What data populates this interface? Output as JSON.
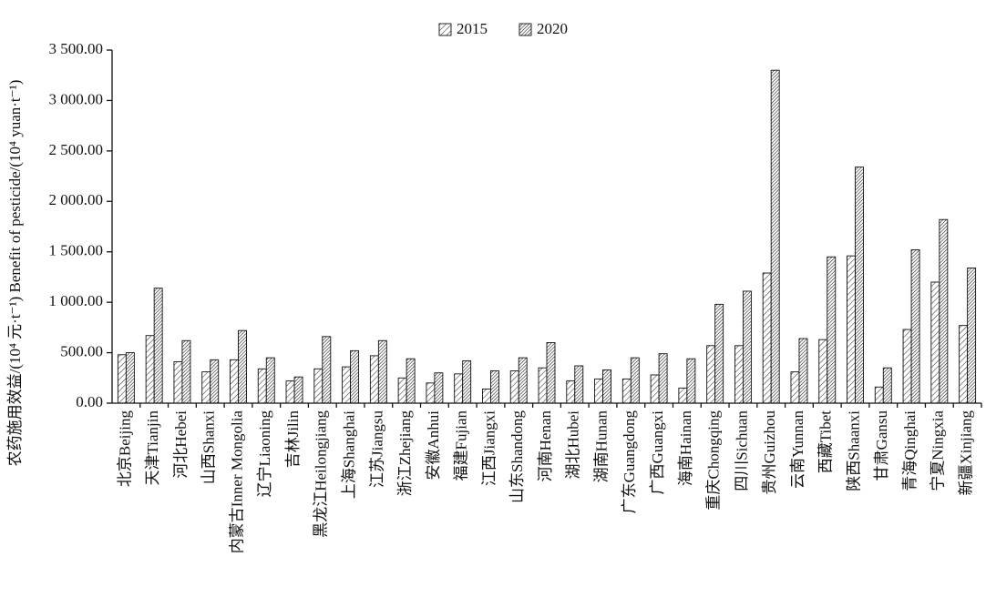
{
  "chart_data": {
    "type": "bar",
    "y_label": "农药施用效益/(10⁴ 元·t⁻¹) Benefit of pesticide/(10⁴ yuan·t⁻¹)",
    "categories": [
      "北京Beijing",
      "天津Tianjin",
      "河北Hebei",
      "山西Shanxi",
      "内蒙古Inner Mongolia",
      "辽宁Liaoning",
      "吉林Jilin",
      "黑龙江Heilongjiang",
      "上海Shanghai",
      "江苏Jiangsu",
      "浙江Zhejiang",
      "安徽Anhui",
      "福建Fujian",
      "江西Jiangxi",
      "山东Shandong",
      "河南Henan",
      "湖北Hubei",
      "湖南Hunan",
      "广东Guangdong",
      "广西Guangxi",
      "海南Hainan",
      "重庆Chongqing",
      "四川Sichuan",
      "贵州Guizhou",
      "云南Yunnan",
      "西藏Tibet",
      "陕西Shaanxi",
      "甘肃Gansu",
      "青海Qinghai",
      "宁夏Ningxia",
      "新疆Xinjiang"
    ],
    "series": [
      {
        "name": "2015",
        "color": "#333333",
        "values": [
          480,
          670,
          410,
          310,
          430,
          340,
          220,
          340,
          360,
          470,
          250,
          200,
          290,
          140,
          320,
          350,
          220,
          240,
          240,
          280,
          150,
          570,
          570,
          1290,
          310,
          630,
          1460,
          160,
          730,
          1200,
          770
        ]
      },
      {
        "name": "2020",
        "color": "#111111",
        "values": [
          500,
          1140,
          620,
          430,
          720,
          450,
          260,
          660,
          520,
          620,
          440,
          300,
          420,
          320,
          450,
          600,
          370,
          330,
          450,
          490,
          440,
          980,
          1110,
          3300,
          640,
          1450,
          2340,
          350,
          1520,
          1820,
          1340
        ]
      }
    ],
    "ylim": [
      0,
      3500
    ],
    "yticks": [
      {
        "value": 0,
        "label": "0.00"
      },
      {
        "value": 500,
        "label": "500.00"
      },
      {
        "value": 1000,
        "label": "1 000.00"
      },
      {
        "value": 1500,
        "label": "1 500.00"
      },
      {
        "value": 2000,
        "label": "2 000.00"
      },
      {
        "value": 2500,
        "label": "2 500.00"
      },
      {
        "value": 3000,
        "label": "3 000.00"
      },
      {
        "value": 3500,
        "label": "3 500.00"
      }
    ],
    "legend": "top"
  }
}
